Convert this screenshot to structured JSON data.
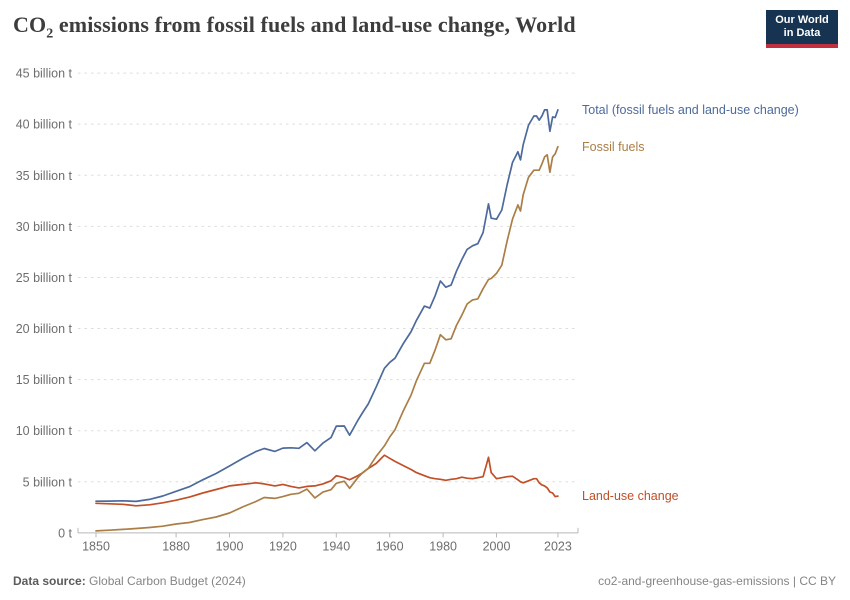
{
  "header": {
    "title_co": "CO",
    "title_sub": "2",
    "title_rest": " emissions from fossil fuels and land-use change, World"
  },
  "logo": {
    "line1": "Our World",
    "line2": "in Data"
  },
  "footer": {
    "source_label": "Data source:",
    "source_value": " Global Carbon Budget (2024)",
    "license": "co2-and-greenhouse-gas-emissions | CC BY"
  },
  "colors": {
    "total": "#4C6A9C",
    "fossil": "#AB7E46",
    "land_use": "#C14F27",
    "grid": "#DDDDDD",
    "axis": "#B9B9B9",
    "tick_text": "#6E6E6E",
    "title": "#3D3D3D",
    "logo_bg": "#173352",
    "logo_accent": "#C12F41"
  },
  "chart_data": {
    "type": "line",
    "title": "CO2 emissions from fossil fuels and land-use change, World",
    "unit": "billion tonnes of CO2",
    "xlabel": "",
    "ylabel": "",
    "grid": true,
    "legend_position": "right of line ends",
    "x_axis": {
      "range": [
        1850,
        2023
      ],
      "ticks": [
        1850,
        1880,
        1900,
        1920,
        1940,
        1960,
        1980,
        2000,
        2023
      ]
    },
    "y_axis": {
      "range": [
        0,
        45
      ],
      "ticks": [
        {
          "value": 0,
          "label": "0 t"
        },
        {
          "value": 5,
          "label": "5 billion t"
        },
        {
          "value": 10,
          "label": "10 billion t"
        },
        {
          "value": 15,
          "label": "15 billion t"
        },
        {
          "value": 20,
          "label": "20 billion t"
        },
        {
          "value": 25,
          "label": "25 billion t"
        },
        {
          "value": 30,
          "label": "30 billion t"
        },
        {
          "value": 35,
          "label": "35 billion t"
        },
        {
          "value": 40,
          "label": "40 billion t"
        },
        {
          "value": 45,
          "label": "45 billion t"
        }
      ]
    },
    "years": [
      1850,
      1855,
      1860,
      1865,
      1870,
      1875,
      1880,
      1885,
      1890,
      1895,
      1900,
      1905,
      1910,
      1913,
      1917,
      1920,
      1923,
      1926,
      1929,
      1932,
      1935,
      1938,
      1940,
      1943,
      1945,
      1948,
      1950,
      1952,
      1955,
      1958,
      1960,
      1962,
      1965,
      1968,
      1970,
      1973,
      1975,
      1977,
      1979,
      1981,
      1983,
      1985,
      1987,
      1989,
      1991,
      1993,
      1995,
      1997,
      1998,
      2000,
      2002,
      2004,
      2006,
      2008,
      2009,
      2010,
      2012,
      2014,
      2015,
      2016,
      2017,
      2018,
      2019,
      2020,
      2021,
      2022,
      2023
    ],
    "series": [
      {
        "id": "total",
        "name": "Total (fossil fuels and land-use change)",
        "color": "#4C6A9C",
        "values": [
          3.1,
          3.11,
          3.14,
          3.08,
          3.28,
          3.61,
          4.07,
          4.52,
          5.2,
          5.81,
          6.55,
          7.29,
          7.98,
          8.26,
          7.98,
          8.3,
          8.33,
          8.28,
          8.84,
          8.03,
          8.79,
          9.33,
          10.45,
          10.46,
          9.56,
          10.99,
          11.83,
          12.62,
          14.31,
          16.11,
          16.69,
          17.1,
          18.5,
          19.7,
          20.8,
          22.2,
          22.0,
          23.2,
          24.65,
          24.05,
          24.25,
          25.6,
          26.75,
          27.75,
          28.1,
          28.3,
          29.4,
          32.2,
          30.8,
          30.7,
          31.6,
          34.1,
          36.25,
          37.3,
          36.5,
          38.0,
          39.9,
          40.8,
          40.8,
          40.4,
          40.8,
          41.4,
          41.4,
          39.3,
          40.7,
          40.65,
          41.4
        ]
      },
      {
        "id": "fossil_fuels",
        "name": "Fossil fuels",
        "color": "#AB7E46",
        "values": [
          0.2,
          0.26,
          0.34,
          0.43,
          0.53,
          0.66,
          0.87,
          1.02,
          1.3,
          1.56,
          1.95,
          2.54,
          3.08,
          3.46,
          3.38,
          3.55,
          3.78,
          3.88,
          4.29,
          3.43,
          3.99,
          4.23,
          4.85,
          5.06,
          4.36,
          5.39,
          5.93,
          6.32,
          7.51,
          8.51,
          9.39,
          10.1,
          11.9,
          13.5,
          14.9,
          16.6,
          16.6,
          17.9,
          19.4,
          18.9,
          19.0,
          20.3,
          21.3,
          22.4,
          22.8,
          22.9,
          23.9,
          24.8,
          24.9,
          25.4,
          26.2,
          28.6,
          30.7,
          32.1,
          31.5,
          33.1,
          34.8,
          35.5,
          35.5,
          35.5,
          36.1,
          36.8,
          37.0,
          35.3,
          36.8,
          37.1,
          37.8
        ]
      },
      {
        "id": "land_use_change",
        "name": "Land-use change",
        "color": "#C14F27",
        "values": [
          2.9,
          2.85,
          2.8,
          2.65,
          2.75,
          2.95,
          3.2,
          3.5,
          3.9,
          4.25,
          4.6,
          4.75,
          4.9,
          4.8,
          4.6,
          4.75,
          4.55,
          4.4,
          4.55,
          4.6,
          4.8,
          5.1,
          5.6,
          5.4,
          5.2,
          5.6,
          5.9,
          6.3,
          6.8,
          7.6,
          7.3,
          7.0,
          6.6,
          6.2,
          5.9,
          5.6,
          5.4,
          5.3,
          5.25,
          5.15,
          5.25,
          5.3,
          5.45,
          5.35,
          5.3,
          5.4,
          5.5,
          7.4,
          5.9,
          5.3,
          5.4,
          5.5,
          5.55,
          5.2,
          5.0,
          4.9,
          5.1,
          5.3,
          5.3,
          4.9,
          4.7,
          4.6,
          4.4,
          4.0,
          3.9,
          3.55,
          3.6
        ]
      }
    ]
  }
}
